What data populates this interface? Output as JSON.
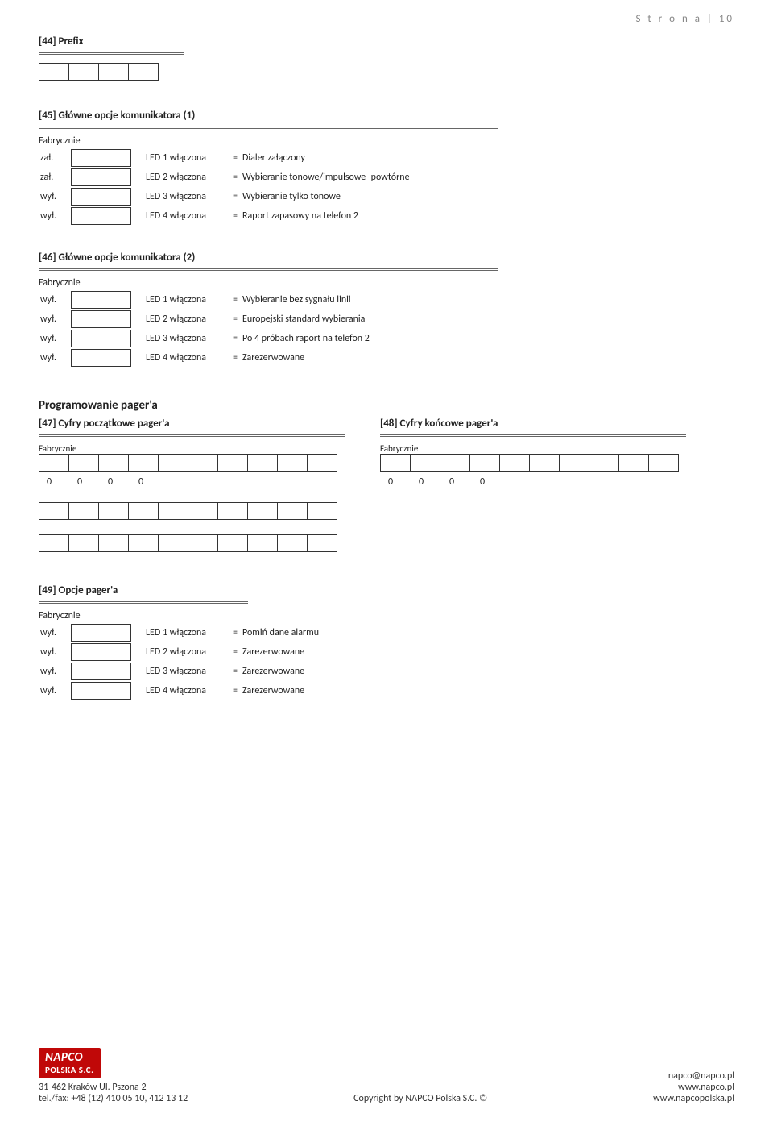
{
  "page_header": {
    "label": "S t r o n a",
    "number": "| 10"
  },
  "section44": {
    "title": "[44] Prefix",
    "cells": 4
  },
  "section45": {
    "title": "[45] Główne opcje komunikatora (1)",
    "fabrycznie": "Fabrycznie",
    "rows": [
      {
        "state": "zał.",
        "led": "LED 1 włączona",
        "eq": "=",
        "desc": "Dialer załączony"
      },
      {
        "state": "zał.",
        "led": "LED 2 włączona",
        "eq": "=",
        "desc": "Wybieranie tonowe/impulsowe- powtórne"
      },
      {
        "state": "wył.",
        "led": "LED 3 włączona",
        "eq": "=",
        "desc": "Wybieranie tylko tonowe"
      },
      {
        "state": "wył.",
        "led": "LED 4 włączona",
        "eq": "=",
        "desc": "Raport zapasowy na telefon 2"
      }
    ]
  },
  "section46": {
    "title": "[46] Główne opcje komunikatora (2)",
    "fabrycznie": "Fabrycznie",
    "rows": [
      {
        "state": "wył.",
        "led": "LED 1 włączona",
        "eq": "=",
        "desc": "Wybieranie bez sygnału linii"
      },
      {
        "state": "wył.",
        "led": "LED 2 włączona",
        "eq": "=",
        "desc": "Europejski standard wybierania"
      },
      {
        "state": "wył.",
        "led": "LED 3 włączona",
        "eq": "=",
        "desc": "Po 4 próbach raport na telefon 2"
      },
      {
        "state": "wył.",
        "led": "LED 4 włączona",
        "eq": "=",
        "desc": "Zarezerwowane"
      }
    ]
  },
  "pager_heading": "Programowanie pager'a",
  "section47": {
    "title": "[47] Cyfry początkowe pager'a",
    "fabrycznie": "Fabrycznie",
    "nums": [
      "0",
      "0",
      "0",
      "0"
    ]
  },
  "section48": {
    "title": "[48] Cyfry końcowe pager'a",
    "fabrycznie": "Fabrycznie",
    "nums": [
      "0",
      "0",
      "0",
      "0"
    ]
  },
  "section49": {
    "title": "[49] Opcje pager'a",
    "fabrycznie": "Fabrycznie",
    "rows": [
      {
        "state": "wył.",
        "led": "LED 1 włączona",
        "eq": "=",
        "desc": "Pomiń dane alarmu"
      },
      {
        "state": "wył.",
        "led": "LED 2 włączona",
        "eq": "=",
        "desc": "Zarezerwowane"
      },
      {
        "state": "wył.",
        "led": "LED 3 włączona",
        "eq": "=",
        "desc": "Zarezerwowane"
      },
      {
        "state": "wył.",
        "led": "LED 4 włączona",
        "eq": "=",
        "desc": "Zarezerwowane"
      }
    ]
  },
  "footer": {
    "logo_main": "NAPCO",
    "logo_sub": "POLSKA S.C.",
    "addr1": "31-462 Kraków Ul. Pszona 2",
    "addr2": "tel./fax: +48 (12) 410 05 10, 412 13 12",
    "center": "Copyright by NAPCO Polska S.C. ©",
    "right1": "napco@napco.pl",
    "right2": "www.napco.pl",
    "right3": "www.napcopolska.pl"
  }
}
